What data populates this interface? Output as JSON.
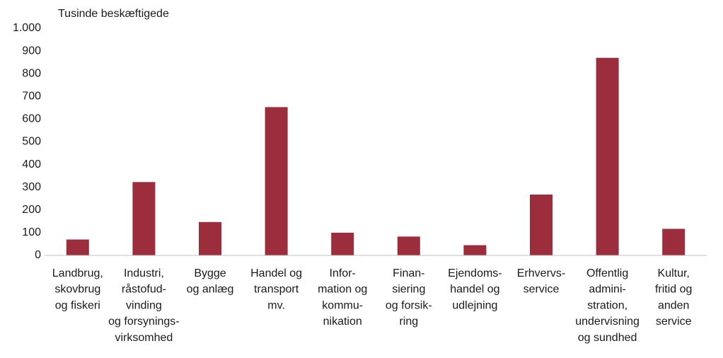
{
  "chart_data": {
    "type": "bar",
    "y_label": "Tusinde beskæftigede",
    "categories": [
      [
        "Landbrug,",
        "skovbrug",
        "og fiskeri"
      ],
      [
        "Industri,",
        "råstofud-",
        "vinding",
        "og forsynings-",
        "virksomhed"
      ],
      [
        "Bygge",
        "og anlæg"
      ],
      [
        "Handel og",
        "transport",
        "mv."
      ],
      [
        "Infor-",
        "mation og",
        "kommu-",
        "nikation"
      ],
      [
        "Finan-",
        "siering",
        "og forsik-",
        "ring"
      ],
      [
        "Ejendoms-",
        "handel og",
        "udlejning"
      ],
      [
        "Erhvervs-",
        "service"
      ],
      [
        "Offentlig",
        "admini-",
        "stration,",
        "undervisning",
        "og sundhed"
      ],
      [
        "Kultur,",
        "fritid og",
        "anden",
        "service"
      ]
    ],
    "values": [
      70,
      323,
      147,
      653,
      100,
      83,
      45,
      268,
      870,
      117
    ],
    "color": "#9b2d3c",
    "ylim": [
      0,
      1000
    ],
    "yticks": [
      0,
      100,
      200,
      300,
      400,
      500,
      600,
      700,
      800,
      900,
      {
        "value": 1000,
        "label": "1.000"
      }
    ],
    "grid": false
  }
}
